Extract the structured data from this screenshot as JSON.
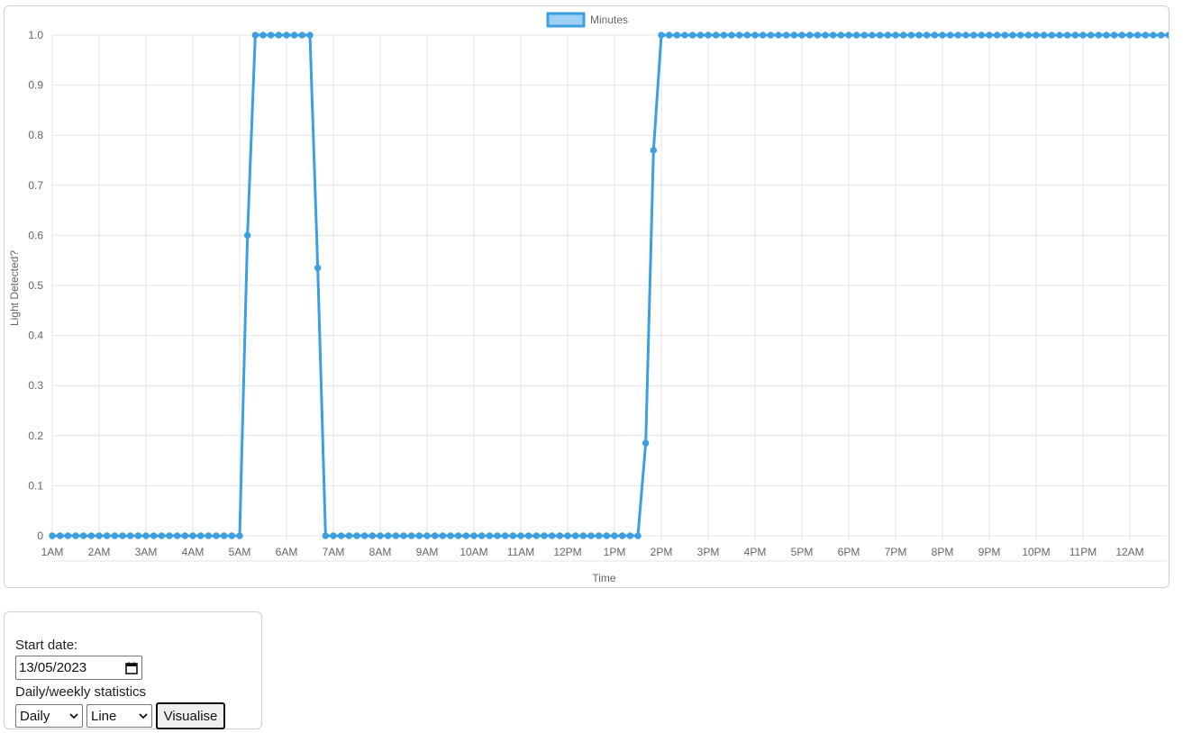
{
  "chart_data": {
    "type": "line",
    "legend": {
      "label": "Minutes",
      "placement": "top-center"
    },
    "xlabel": "Time",
    "ylabel": "Light Detected?",
    "ylim": [
      0,
      1
    ],
    "y_ticks": [
      "0",
      "0.1",
      "0.2",
      "0.3",
      "0.4",
      "0.5",
      "0.6",
      "0.7",
      "0.8",
      "0.9",
      "1.0"
    ],
    "x_ticks": [
      "1AM",
      "2AM",
      "3AM",
      "4AM",
      "5AM",
      "6AM",
      "7AM",
      "8AM",
      "9AM",
      "10AM",
      "11AM",
      "12PM",
      "1PM",
      "2PM",
      "3PM",
      "4PM",
      "5PM",
      "6PM",
      "7PM",
      "8PM",
      "9PM",
      "10PM",
      "11PM",
      "12AM"
    ],
    "grid": true,
    "colors": {
      "line": "#3b9fe0",
      "legend_fill": "#9fd0f3",
      "grid": "#e4e4e4",
      "text": "#666666"
    },
    "series": [
      {
        "name": "Minutes",
        "values": [
          0,
          0,
          0,
          0,
          0,
          0,
          0,
          0,
          0,
          0,
          0,
          0,
          0,
          0,
          0,
          0,
          0,
          0,
          0,
          0,
          0,
          0,
          0,
          0,
          0,
          0.6,
          1,
          1,
          1,
          1,
          1,
          1,
          1,
          1,
          0.535,
          0,
          0,
          0,
          0,
          0,
          0,
          0,
          0,
          0,
          0,
          0,
          0,
          0,
          0,
          0,
          0,
          0,
          0,
          0,
          0,
          0,
          0,
          0,
          0,
          0,
          0,
          0,
          0,
          0,
          0,
          0,
          0,
          0,
          0,
          0,
          0,
          0,
          0,
          0,
          0,
          0,
          0.185,
          0.77,
          1,
          1,
          1,
          1,
          1,
          1,
          1,
          1,
          1,
          1,
          1,
          1,
          1,
          1,
          1,
          1,
          1,
          1,
          1,
          1,
          1,
          1,
          1,
          1,
          1,
          1,
          1,
          1,
          1,
          1,
          1,
          1,
          1,
          1,
          1,
          1,
          1,
          1,
          1,
          1,
          1,
          1,
          1,
          1,
          1,
          1,
          1,
          1,
          1,
          1,
          1,
          1,
          1,
          1,
          1,
          1,
          1,
          1,
          1,
          1,
          1,
          1,
          1,
          1,
          1,
          1,
          1,
          1
        ]
      }
    ]
  },
  "controls": {
    "start_date_label": "Start date:",
    "start_date_value": "13/05/2023",
    "stats_label": "Daily/weekly statistics",
    "period_select": "Daily",
    "chart_type_select": "Line",
    "visualise_button": "Visualise"
  }
}
